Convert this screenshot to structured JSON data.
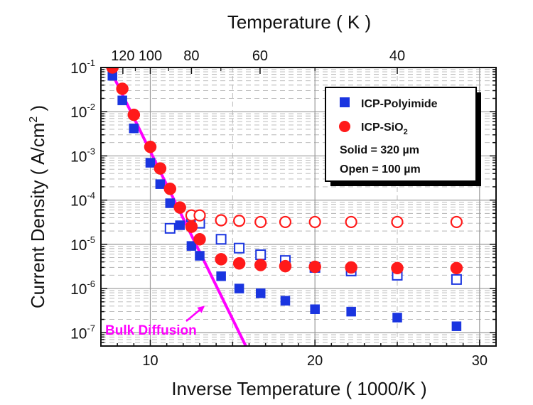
{
  "chart_data": {
    "type": "scatter",
    "xlabel": "Inverse Temperature ( 1000/K )",
    "ylabel_main": "Current Density ( A/cm",
    "ylabel_sup": "2",
    "ylabel_end": " )",
    "top_axis_label": "Temperature ( K )",
    "xlim": [
      7,
      31
    ],
    "ylim": [
      5e-08,
      0.1
    ],
    "y_scale": "log",
    "grid": true,
    "x_ticks": [
      {
        "value": 10,
        "label": "10"
      },
      {
        "value": 20,
        "label": "20"
      },
      {
        "value": 30,
        "label": "30"
      }
    ],
    "y_ticks": [
      {
        "value": 0.1,
        "base": "10",
        "exp": "-1"
      },
      {
        "value": 0.01,
        "base": "10",
        "exp": "-2"
      },
      {
        "value": 0.001,
        "base": "10",
        "exp": "-3"
      },
      {
        "value": 0.0001,
        "base": "10",
        "exp": "-4"
      },
      {
        "value": 1e-05,
        "base": "10",
        "exp": "-5"
      },
      {
        "value": 1e-06,
        "base": "10",
        "exp": "-6"
      },
      {
        "value": 1e-07,
        "base": "10",
        "exp": "-7"
      }
    ],
    "top_ticks": [
      {
        "temperature": 120,
        "label": "120"
      },
      {
        "temperature": 100,
        "label": "100"
      },
      {
        "temperature": 80,
        "label": "80"
      },
      {
        "temperature": 60,
        "label": "60"
      },
      {
        "temperature": 40,
        "label": "40"
      }
    ],
    "legend": {
      "placement": "top-right",
      "entries": [
        {
          "name": "ICP-Polyimide",
          "marker": "square",
          "color": "#1a35e0"
        },
        {
          "name_main": "ICP-SiO",
          "name_sub": "2",
          "marker": "circle",
          "color": "#ff1a1a"
        }
      ],
      "notes": [
        "Solid = 320 µm",
        "Open = 100 µm"
      ]
    },
    "series": [
      {
        "name": "ICP-Polyimide",
        "condition": "Solid",
        "marker": "square",
        "filled": true,
        "color": "#1a35e0",
        "points": [
          [
            7.7,
            0.065
          ],
          [
            8.3,
            0.018
          ],
          [
            9.0,
            0.0042
          ],
          [
            10.0,
            0.0007
          ],
          [
            10.6,
            0.00023
          ],
          [
            11.2,
            8.5e-05
          ],
          [
            11.8,
            2.7e-05
          ],
          [
            12.5,
            9.2e-06
          ],
          [
            13.0,
            5.5e-06
          ],
          [
            14.3,
            1.9e-06
          ],
          [
            15.4,
            1e-06
          ],
          [
            16.7,
            7.8e-07
          ],
          [
            18.2,
            5.3e-07
          ],
          [
            20.0,
            3.4e-07
          ],
          [
            22.2,
            3e-07
          ],
          [
            25.0,
            2.2e-07
          ],
          [
            28.6,
            1.4e-07
          ]
        ]
      },
      {
        "name": "ICP-Polyimide",
        "condition": "Open",
        "marker": "square",
        "filled": false,
        "color": "#1a35e0",
        "points": [
          [
            11.2,
            2.3e-05
          ],
          [
            12.5,
            4.2e-05
          ],
          [
            13.0,
            3e-05
          ],
          [
            14.3,
            1.3e-05
          ],
          [
            15.4,
            8.2e-06
          ],
          [
            16.7,
            5.8e-06
          ],
          [
            18.2,
            4.3e-06
          ],
          [
            20.0,
            3e-06
          ],
          [
            22.2,
            2.5e-06
          ],
          [
            25.0,
            2e-06
          ],
          [
            28.6,
            1.6e-06
          ]
        ]
      },
      {
        "name": "ICP-SiO2",
        "condition": "Solid",
        "marker": "circle",
        "filled": true,
        "color": "#ff1a1a",
        "points": [
          [
            7.7,
            0.1
          ],
          [
            8.3,
            0.033
          ],
          [
            9.0,
            0.0085
          ],
          [
            10.0,
            0.0016
          ],
          [
            10.6,
            0.00052
          ],
          [
            11.2,
            0.00018
          ],
          [
            11.8,
            6.8e-05
          ],
          [
            12.5,
            2.5e-05
          ],
          [
            13.0,
            1.3e-05
          ],
          [
            14.3,
            4.6e-06
          ],
          [
            15.4,
            3.7e-06
          ],
          [
            16.7,
            3.4e-06
          ],
          [
            18.2,
            3.2e-06
          ],
          [
            20.0,
            3.1e-06
          ],
          [
            22.2,
            3e-06
          ],
          [
            25.0,
            2.9e-06
          ],
          [
            28.6,
            2.9e-06
          ]
        ]
      },
      {
        "name": "ICP-SiO2",
        "condition": "Open",
        "marker": "circle",
        "filled": false,
        "color": "#ff1a1a",
        "points": [
          [
            12.5,
            4.5e-05
          ],
          [
            13.0,
            4.5e-05
          ],
          [
            14.3,
            3.5e-05
          ],
          [
            15.4,
            3.4e-05
          ],
          [
            16.7,
            3.2e-05
          ],
          [
            18.2,
            3.2e-05
          ],
          [
            20.0,
            3.2e-05
          ],
          [
            22.2,
            3.2e-05
          ],
          [
            25.0,
            3.2e-05
          ],
          [
            28.6,
            3.2e-05
          ]
        ]
      }
    ],
    "bulk_diffusion_line": {
      "label": "Bulk Diffusion",
      "color": "#ff00ff",
      "points": [
        [
          7.5,
          0.1
        ],
        [
          15.8,
          5e-08
        ]
      ]
    },
    "annotation": {
      "text": "Bulk Diffusion",
      "color": "#ff00ff",
      "points_to": [
        13.5,
        4.5e-07
      ]
    }
  }
}
